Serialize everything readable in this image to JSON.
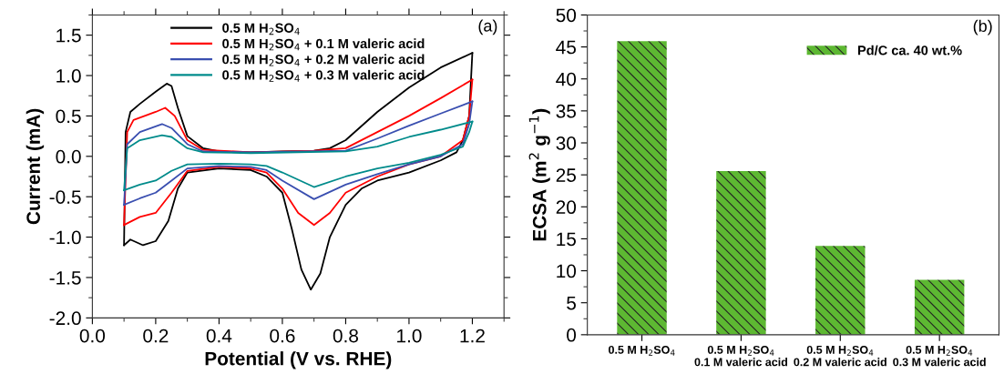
{
  "chart_data": [
    {
      "type": "line",
      "xlabel": "Potential (V vs. RHE)",
      "ylabel": "Current (mA)",
      "xlim": [
        0.0,
        1.3
      ],
      "xticks": [
        {
          "value": 0,
          "label": "0.0"
        },
        0.2,
        0.4,
        0.6,
        0.8,
        {
          "value": 1,
          "label": "1.0"
        },
        1.2
      ],
      "ylim": [
        -2.0,
        1.75
      ],
      "yticks": [
        {
          "value": -2,
          "label": "-2.0"
        },
        -1.5,
        {
          "value": -1,
          "label": "-1.0"
        },
        -0.5,
        {
          "value": 0,
          "label": "0.0"
        },
        0.5,
        {
          "value": 1,
          "label": "1.0"
        },
        1.5
      ],
      "grid": false,
      "legend": "top",
      "marker": "none",
      "line_style": "solid",
      "annotations": [
        "(a)"
      ],
      "series": [
        {
          "name": "0.5 M H$_{2}$SO$_{4}$",
          "color": "#000000",
          "x": [
            0.1,
            0.105,
            0.12,
            0.15,
            0.2,
            0.235,
            0.25,
            0.27,
            0.3,
            0.35,
            0.4,
            0.5,
            0.6,
            0.7,
            0.75,
            0.8,
            0.9,
            1.0,
            1.1,
            1.2
          ],
          "values": [
            -1.1,
            0.3,
            0.55,
            0.65,
            0.8,
            0.9,
            0.87,
            0.6,
            0.25,
            0.1,
            0.06,
            0.05,
            0.06,
            0.07,
            0.1,
            0.2,
            0.55,
            0.85,
            1.1,
            1.28
          ]
        },
        {
          "color": "#000000",
          "x": [
            1.2,
            1.19,
            1.17,
            1.15,
            1.1,
            1.0,
            0.9,
            0.85,
            0.8,
            0.75,
            0.72,
            0.69,
            0.66,
            0.63,
            0.6,
            0.55,
            0.5,
            0.4,
            0.3,
            0.27,
            0.24,
            0.2,
            0.16,
            0.12,
            0.1
          ],
          "values": [
            1.28,
            0.5,
            0.2,
            0.05,
            -0.05,
            -0.2,
            -0.3,
            -0.4,
            -0.6,
            -1.0,
            -1.45,
            -1.65,
            -1.4,
            -0.9,
            -0.45,
            -0.25,
            -0.17,
            -0.15,
            -0.2,
            -0.4,
            -0.8,
            -1.05,
            -1.1,
            -1.03,
            -1.1
          ]
        },
        {
          "name": "0.5 M H$_{2}$SO$_{4}$ + 0.1 M valeric acid",
          "color": "#ff0000",
          "x": [
            0.1,
            0.11,
            0.13,
            0.2,
            0.23,
            0.26,
            0.3,
            0.35,
            0.5,
            0.7,
            0.8,
            0.9,
            1.0,
            1.1,
            1.2
          ],
          "values": [
            -0.85,
            0.3,
            0.45,
            0.55,
            0.6,
            0.5,
            0.2,
            0.08,
            0.05,
            0.07,
            0.1,
            0.3,
            0.5,
            0.72,
            0.95
          ]
        },
        {
          "color": "#ff0000",
          "x": [
            1.2,
            1.19,
            1.17,
            1.1,
            1.0,
            0.9,
            0.8,
            0.75,
            0.7,
            0.65,
            0.6,
            0.55,
            0.5,
            0.4,
            0.3,
            0.25,
            0.2,
            0.15,
            0.1
          ],
          "values": [
            0.95,
            0.5,
            0.2,
            0.0,
            -0.1,
            -0.25,
            -0.45,
            -0.7,
            -0.85,
            -0.7,
            -0.4,
            -0.2,
            -0.15,
            -0.13,
            -0.18,
            -0.45,
            -0.7,
            -0.75,
            -0.85
          ]
        },
        {
          "name": "0.5 M H$_{2}$SO$_{4}$ + 0.2 M valeric acid",
          "color": "#3a4fb0",
          "x": [
            0.1,
            0.11,
            0.15,
            0.22,
            0.25,
            0.3,
            0.35,
            0.5,
            0.8,
            0.9,
            1.0,
            1.1,
            1.2
          ],
          "values": [
            -0.6,
            0.15,
            0.3,
            0.4,
            0.35,
            0.15,
            0.06,
            0.05,
            0.07,
            0.22,
            0.38,
            0.53,
            0.68
          ]
        },
        {
          "color": "#3a4fb0",
          "x": [
            1.2,
            1.19,
            1.17,
            1.1,
            1.0,
            0.9,
            0.8,
            0.7,
            0.6,
            0.55,
            0.5,
            0.4,
            0.3,
            0.25,
            0.2,
            0.15,
            0.1
          ],
          "values": [
            0.68,
            0.4,
            0.15,
            0.0,
            -0.1,
            -0.22,
            -0.35,
            -0.53,
            -0.3,
            -0.17,
            -0.13,
            -0.12,
            -0.15,
            -0.3,
            -0.45,
            -0.52,
            -0.6
          ]
        },
        {
          "name": "0.5 M H$_{2}$SO$_{4}$ + 0.3 M valeric acid",
          "color": "#008b8b",
          "x": [
            0.1,
            0.11,
            0.15,
            0.22,
            0.25,
            0.3,
            0.35,
            0.5,
            0.8,
            0.9,
            1.0,
            1.1,
            1.2
          ],
          "values": [
            -0.42,
            0.1,
            0.2,
            0.26,
            0.24,
            0.1,
            0.05,
            0.04,
            0.06,
            0.12,
            0.24,
            0.33,
            0.43
          ]
        },
        {
          "color": "#008b8b",
          "x": [
            1.2,
            1.19,
            1.17,
            1.1,
            1.0,
            0.9,
            0.8,
            0.7,
            0.6,
            0.55,
            0.5,
            0.4,
            0.3,
            0.25,
            0.2,
            0.15,
            0.1
          ],
          "values": [
            0.43,
            0.3,
            0.12,
            0.02,
            -0.08,
            -0.15,
            -0.25,
            -0.38,
            -0.2,
            -0.12,
            -0.1,
            -0.09,
            -0.1,
            -0.18,
            -0.3,
            -0.35,
            -0.42
          ]
        }
      ]
    },
    {
      "type": "bar",
      "ylabel": "ECSA (m$^{2}$ g$^{−1}$)",
      "ylim": [
        0,
        50
      ],
      "yticks": [
        0,
        5,
        10,
        15,
        20,
        25,
        30,
        35,
        40,
        45,
        50
      ],
      "grid": false,
      "legend": "top right",
      "annotations": [
        "(b)"
      ],
      "categories": [
        "0.5 M H$_{2}$SO$_{4}$",
        "0.5 M H$_{2}$SO$_{4}$\n0.1 M valeric acid",
        "0.5 M H$_{2}$SO$_{4}$\n0.2 M valeric acid",
        "0.5 M H$_{2}$SO$_{4}$\n0.3 M valeric acid"
      ],
      "series": [
        {
          "name": "Pd/C ca. 40 wt.%",
          "color": "#5db832",
          "values": [
            45.9,
            25.6,
            13.9,
            8.6
          ]
        }
      ]
    }
  ]
}
